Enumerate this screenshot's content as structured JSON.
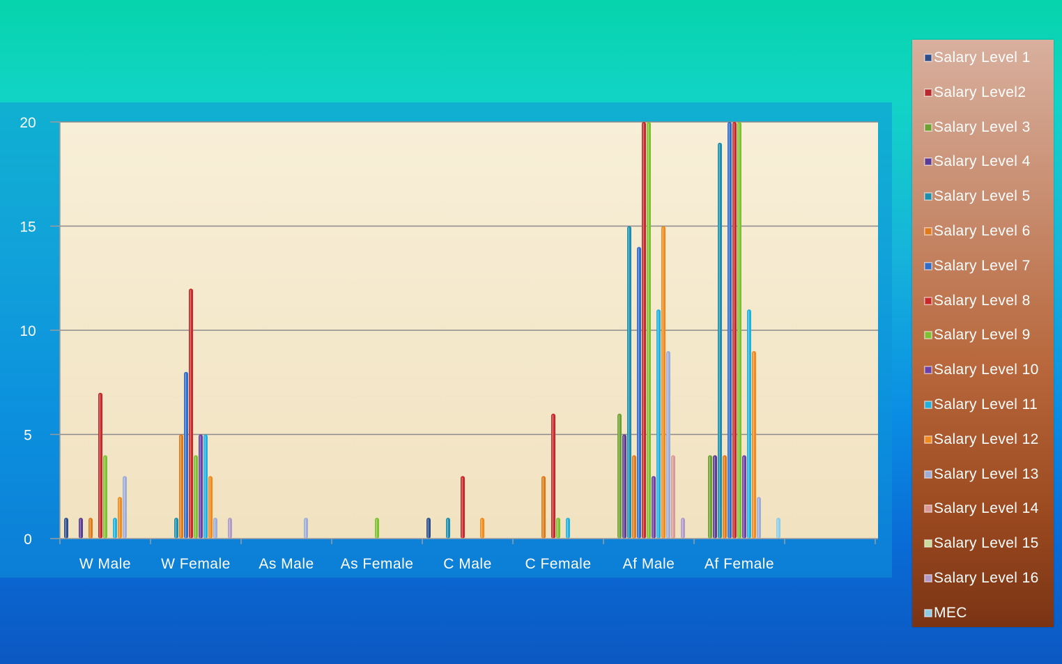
{
  "colors": {
    "plot_background": "#f5ecd4",
    "gridline": "#8a8a8a",
    "axis_text": "#ffffff"
  },
  "chart_data": {
    "type": "bar",
    "title": "",
    "xlabel": "",
    "ylabel": "",
    "ylim": [
      0,
      20
    ],
    "yticks": [
      0,
      5,
      10,
      15,
      20
    ],
    "grid": true,
    "legend_position": "right",
    "categories": [
      "W Male",
      "W Female",
      "As Male",
      "As Female",
      "C Male",
      "C Female",
      "Af Male",
      "Af Female"
    ],
    "series": [
      {
        "name": "Salary Level 1",
        "color": "#2e4e8a",
        "values": [
          1,
          0,
          0,
          0,
          1,
          0,
          0,
          0
        ]
      },
      {
        "name": "Salary Level2",
        "color": "#b8282c",
        "values": [
          0,
          0,
          0,
          0,
          0,
          0,
          0,
          0
        ]
      },
      {
        "name": "Salary Level 3",
        "color": "#6fa032",
        "values": [
          0,
          0,
          0,
          0,
          0,
          0,
          6,
          4
        ]
      },
      {
        "name": "Salary Level 4",
        "color": "#5b3c94",
        "values": [
          1,
          0,
          0,
          0,
          0,
          0,
          5,
          4
        ]
      },
      {
        "name": "Salary Level 5",
        "color": "#1c8eab",
        "values": [
          0,
          1,
          0,
          0,
          1,
          0,
          15,
          19
        ]
      },
      {
        "name": "Salary Level 6",
        "color": "#e07a18",
        "values": [
          1,
          5,
          0,
          0,
          0,
          3,
          4,
          4
        ]
      },
      {
        "name": "Salary Level 7",
        "color": "#2f6cc8",
        "values": [
          0,
          8,
          0,
          0,
          0,
          0,
          14,
          20
        ]
      },
      {
        "name": "Salary Level 8",
        "color": "#c8282a",
        "values": [
          7,
          12,
          0,
          0,
          3,
          6,
          20,
          20
        ]
      },
      {
        "name": "Salary Level 9",
        "color": "#7ec032",
        "values": [
          4,
          4,
          0,
          1,
          0,
          1,
          20,
          20
        ]
      },
      {
        "name": "Salary Level 10",
        "color": "#6a40a8",
        "values": [
          0,
          5,
          0,
          0,
          0,
          0,
          3,
          4
        ]
      },
      {
        "name": "Salary Level 11",
        "color": "#22b0dc",
        "values": [
          1,
          5,
          0,
          0,
          0,
          1,
          11,
          11
        ]
      },
      {
        "name": "Salary Level 12",
        "color": "#f08a1c",
        "values": [
          2,
          3,
          0,
          0,
          1,
          0,
          15,
          9
        ]
      },
      {
        "name": "Salary Level 13",
        "color": "#9eacd6",
        "values": [
          3,
          1,
          1,
          0,
          0,
          0,
          9,
          2
        ]
      },
      {
        "name": "Salary Level 14",
        "color": "#d89a98",
        "values": [
          0,
          0,
          0,
          0,
          0,
          0,
          4,
          0
        ]
      },
      {
        "name": "Salary Level 15",
        "color": "#c8dc9c",
        "values": [
          0,
          0,
          0,
          0,
          0,
          0,
          0,
          0
        ]
      },
      {
        "name": "Salary Level 16",
        "color": "#b09ac8",
        "values": [
          0,
          1,
          0,
          0,
          0,
          0,
          1,
          0
        ]
      },
      {
        "name": "MEC",
        "color": "#8ccce4",
        "values": [
          0,
          0,
          0,
          0,
          0,
          0,
          0,
          1
        ]
      }
    ]
  }
}
